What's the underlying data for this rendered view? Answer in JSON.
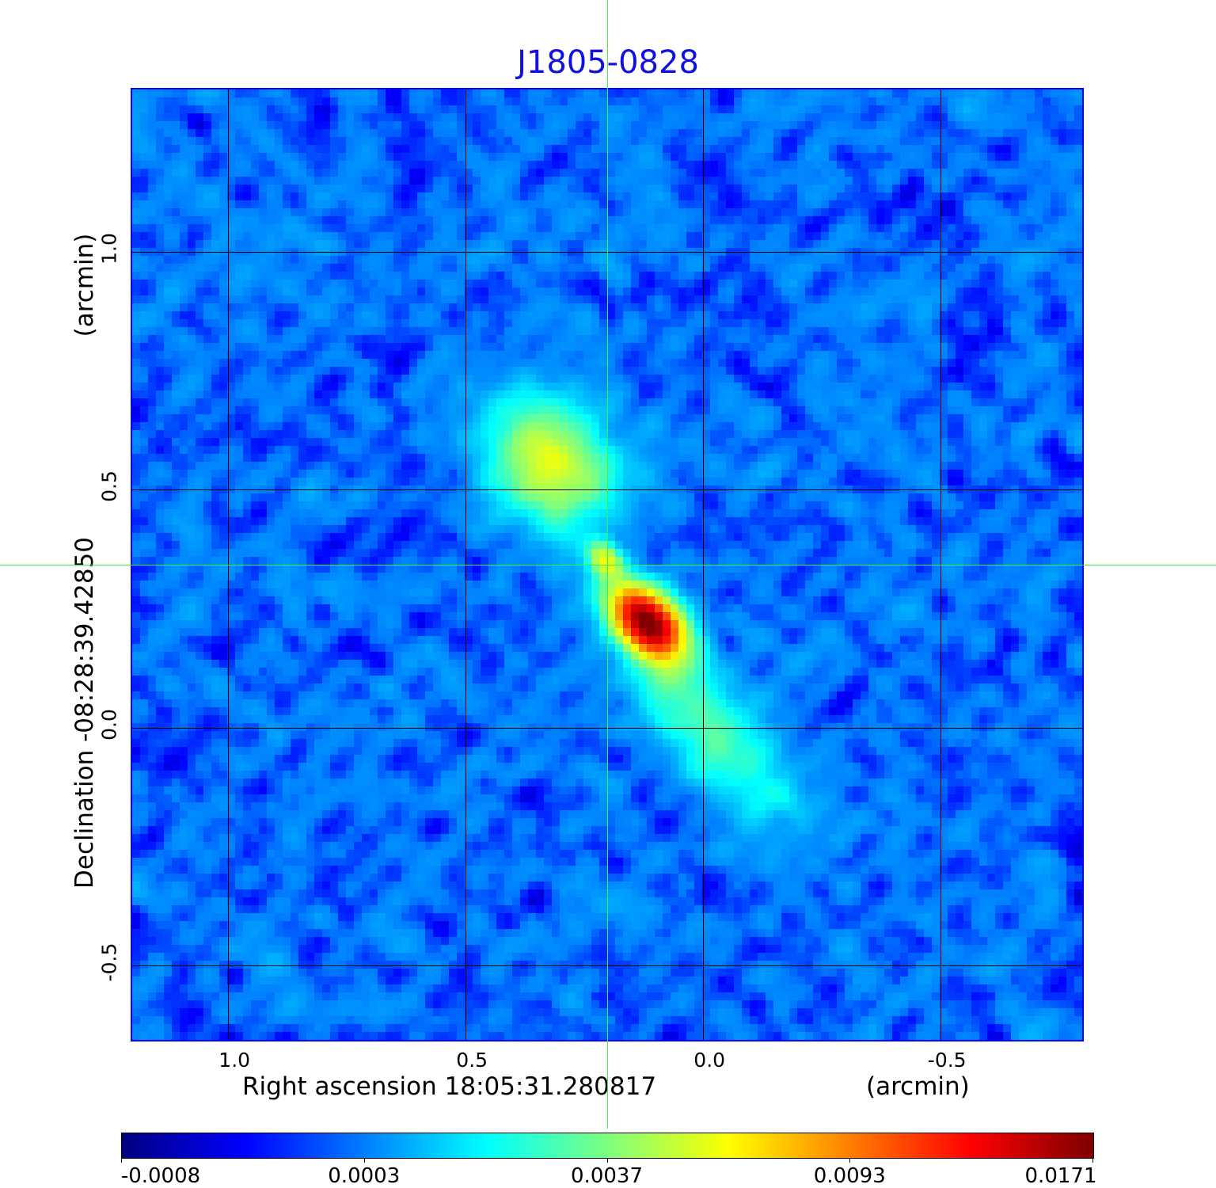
{
  "chart_data": {
    "type": "heatmap",
    "title": "J1805-0828",
    "xlabel": "Right ascension  18:05:31.280817",
    "xlabel_unit": "(arcmin)",
    "ylabel": "Declination  -08:28:39.42850",
    "ylabel_unit": "(arcmin)",
    "xlim": [
      1.202,
      -0.798
    ],
    "ylim": [
      -0.657,
      1.342
    ],
    "x_ticks": [
      {
        "v": 1.0,
        "label": "1.0"
      },
      {
        "v": 0.5,
        "label": "0.5"
      },
      {
        "v": 0.0,
        "label": "0.0"
      },
      {
        "v": -0.5,
        "label": "-0.5"
      }
    ],
    "y_ticks": [
      {
        "v": 1.0,
        "label": "1.0"
      },
      {
        "v": 0.5,
        "label": "0.5"
      },
      {
        "v": 0.0,
        "label": "0.0"
      },
      {
        "v": -0.5,
        "label": "-0.5"
      }
    ],
    "grid": true,
    "colormap": "jet",
    "colorbar": {
      "placement": "bottom",
      "ticks": [
        {
          "v": -0.0008,
          "label": "-0.0008"
        },
        {
          "v": 0.0003,
          "label": "0.0003"
        },
        {
          "v": 0.0037,
          "label": "0.0037"
        },
        {
          "v": 0.0093,
          "label": "0.0093"
        },
        {
          "v": 0.0171,
          "label": "0.0171"
        }
      ]
    },
    "crosshair": {
      "x": 0.2017,
      "y": 0.342
    },
    "background_level": 0.00025,
    "components": [
      {
        "x": 0.117,
        "y": 0.222,
        "peak": 0.0168,
        "sigma_major": 0.06,
        "sigma_minor": 0.038
      },
      {
        "x": 0.205,
        "y": 0.352,
        "peak": 0.0055,
        "sigma_major": 0.03,
        "sigma_minor": 0.022
      },
      {
        "x": 0.32,
        "y": 0.555,
        "peak": 0.0055,
        "sigma_major": 0.1,
        "sigma_minor": 0.08
      },
      {
        "x": -0.03,
        "y": -0.04,
        "peak": 0.0022,
        "sigma_major": 0.16,
        "sigma_minor": 0.065
      },
      {
        "x": 0.05,
        "y": 0.1,
        "peak": 0.0015,
        "sigma_major": 0.12,
        "sigma_minor": 0.05
      }
    ],
    "colors": {
      "title": "#1010e0",
      "frame": "#0000ff",
      "crosshair": "#44ee44"
    }
  }
}
